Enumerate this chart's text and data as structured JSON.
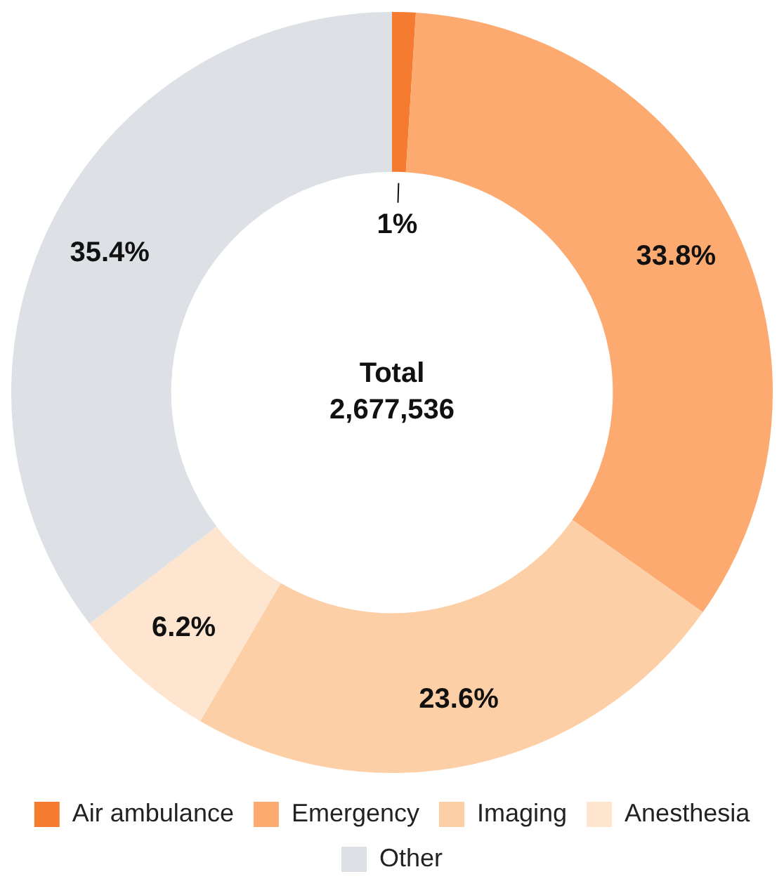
{
  "chart_data": {
    "type": "donut",
    "categories": [
      "Air ambulance",
      "Emergency",
      "Imaging",
      "Anesthesia",
      "Other"
    ],
    "values": [
      1,
      33.8,
      23.6,
      6.2,
      35.4
    ],
    "colors": [
      "#f47b30",
      "#fdaa70",
      "#fdcfa6",
      "#fde5d0",
      "#dde0e4"
    ],
    "value_labels": [
      "1%",
      "33.8%",
      "23.6%",
      "6.2%",
      "35.4%"
    ],
    "annotations": [
      "Total",
      "2,677,536"
    ],
    "legend": "bottom"
  }
}
